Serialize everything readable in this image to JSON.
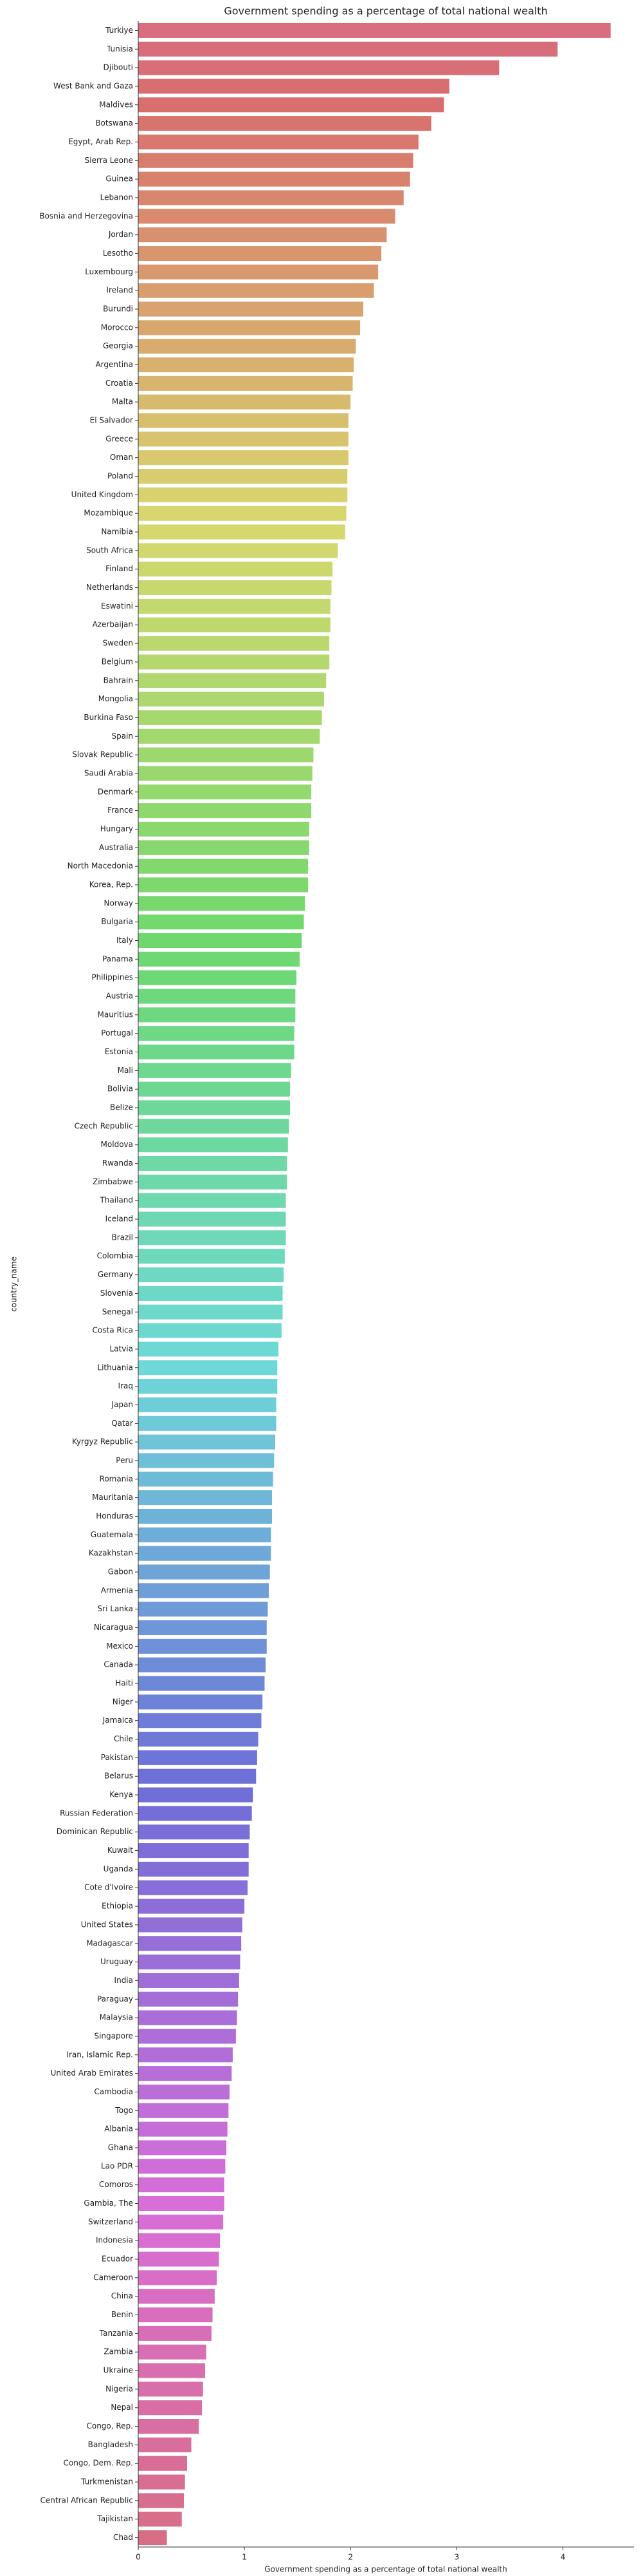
{
  "chart_data": {
    "type": "barh",
    "title": "Government spending as a percentage of total national wealth",
    "xlabel": "Government spending as a percentage of total national wealth",
    "ylabel": "country_name",
    "palette": "husl",
    "xlim": [
      0,
      4.67
    ],
    "xticks": [
      0,
      1,
      2,
      3,
      4
    ],
    "categories": [
      "Turkiye",
      "Tunisia",
      "Djibouti",
      "West Bank and Gaza",
      "Maldives",
      "Botswana",
      "Egypt, Arab Rep.",
      "Sierra Leone",
      "Guinea",
      "Lebanon",
      "Bosnia and Herzegovina",
      "Jordan",
      "Lesotho",
      "Luxembourg",
      "Ireland",
      "Burundi",
      "Morocco",
      "Georgia",
      "Argentina",
      "Croatia",
      "Malta",
      "El Salvador",
      "Greece",
      "Oman",
      "Poland",
      "United Kingdom",
      "Mozambique",
      "Namibia",
      "South Africa",
      "Finland",
      "Netherlands",
      "Eswatini",
      "Azerbaijan",
      "Sweden",
      "Belgium",
      "Bahrain",
      "Mongolia",
      "Burkina Faso",
      "Spain",
      "Slovak Republic",
      "Saudi Arabia",
      "Denmark",
      "France",
      "Hungary",
      "Australia",
      "North Macedonia",
      "Korea, Rep.",
      "Norway",
      "Bulgaria",
      "Italy",
      "Panama",
      "Philippines",
      "Austria",
      "Mauritius",
      "Portugal",
      "Estonia",
      "Mali",
      "Bolivia",
      "Belize",
      "Czech Republic",
      "Moldova",
      "Rwanda",
      "Zimbabwe",
      "Thailand",
      "Iceland",
      "Brazil",
      "Colombia",
      "Germany",
      "Slovenia",
      "Senegal",
      "Costa Rica",
      "Latvia",
      "Lithuania",
      "Iraq",
      "Japan",
      "Qatar",
      "Kyrgyz Republic",
      "Peru",
      "Romania",
      "Mauritania",
      "Honduras",
      "Guatemala",
      "Kazakhstan",
      "Gabon",
      "Armenia",
      "Sri Lanka",
      "Nicaragua",
      "Mexico",
      "Canada",
      "Haiti",
      "Niger",
      "Jamaica",
      "Chile",
      "Pakistan",
      "Belarus",
      "Kenya",
      "Russian Federation",
      "Dominican Republic",
      "Kuwait",
      "Uganda",
      "Cote d'Ivoire",
      "Ethiopia",
      "United States",
      "Madagascar",
      "Uruguay",
      "India",
      "Paraguay",
      "Malaysia",
      "Singapore",
      "Iran, Islamic Rep.",
      "United Arab Emirates",
      "Cambodia",
      "Togo",
      "Albania",
      "Ghana",
      "Lao PDR",
      "Comoros",
      "Gambia, The",
      "Switzerland",
      "Indonesia",
      "Ecuador",
      "Cameroon",
      "China",
      "Benin",
      "Tanzania",
      "Zambia",
      "Ukraine",
      "Nigeria",
      "Nepal",
      "Congo, Rep.",
      "Bangladesh",
      "Congo, Dem. Rep.",
      "Turkmenistan",
      "Central African Republic",
      "Tajikistan",
      "Chad"
    ],
    "values": [
      4.45,
      3.95,
      3.4,
      2.93,
      2.88,
      2.76,
      2.64,
      2.59,
      2.56,
      2.5,
      2.42,
      2.34,
      2.29,
      2.26,
      2.22,
      2.12,
      2.09,
      2.05,
      2.03,
      2.02,
      2.0,
      1.98,
      1.98,
      1.98,
      1.97,
      1.97,
      1.96,
      1.95,
      1.88,
      1.83,
      1.82,
      1.81,
      1.81,
      1.8,
      1.8,
      1.77,
      1.75,
      1.73,
      1.71,
      1.65,
      1.64,
      1.63,
      1.63,
      1.61,
      1.61,
      1.6,
      1.6,
      1.57,
      1.56,
      1.54,
      1.52,
      1.49,
      1.48,
      1.48,
      1.47,
      1.47,
      1.44,
      1.43,
      1.43,
      1.42,
      1.41,
      1.4,
      1.4,
      1.39,
      1.39,
      1.39,
      1.38,
      1.37,
      1.36,
      1.36,
      1.35,
      1.32,
      1.31,
      1.31,
      1.3,
      1.3,
      1.29,
      1.28,
      1.27,
      1.26,
      1.26,
      1.25,
      1.25,
      1.24,
      1.23,
      1.22,
      1.21,
      1.21,
      1.2,
      1.19,
      1.17,
      1.16,
      1.13,
      1.12,
      1.11,
      1.08,
      1.07,
      1.05,
      1.04,
      1.04,
      1.03,
      1.0,
      0.98,
      0.97,
      0.96,
      0.95,
      0.94,
      0.93,
      0.92,
      0.89,
      0.88,
      0.86,
      0.85,
      0.84,
      0.83,
      0.82,
      0.81,
      0.81,
      0.8,
      0.77,
      0.76,
      0.74,
      0.72,
      0.7,
      0.69,
      0.64,
      0.63,
      0.61,
      0.6,
      0.57,
      0.5,
      0.46,
      0.44,
      0.43,
      0.41,
      0.27
    ]
  }
}
